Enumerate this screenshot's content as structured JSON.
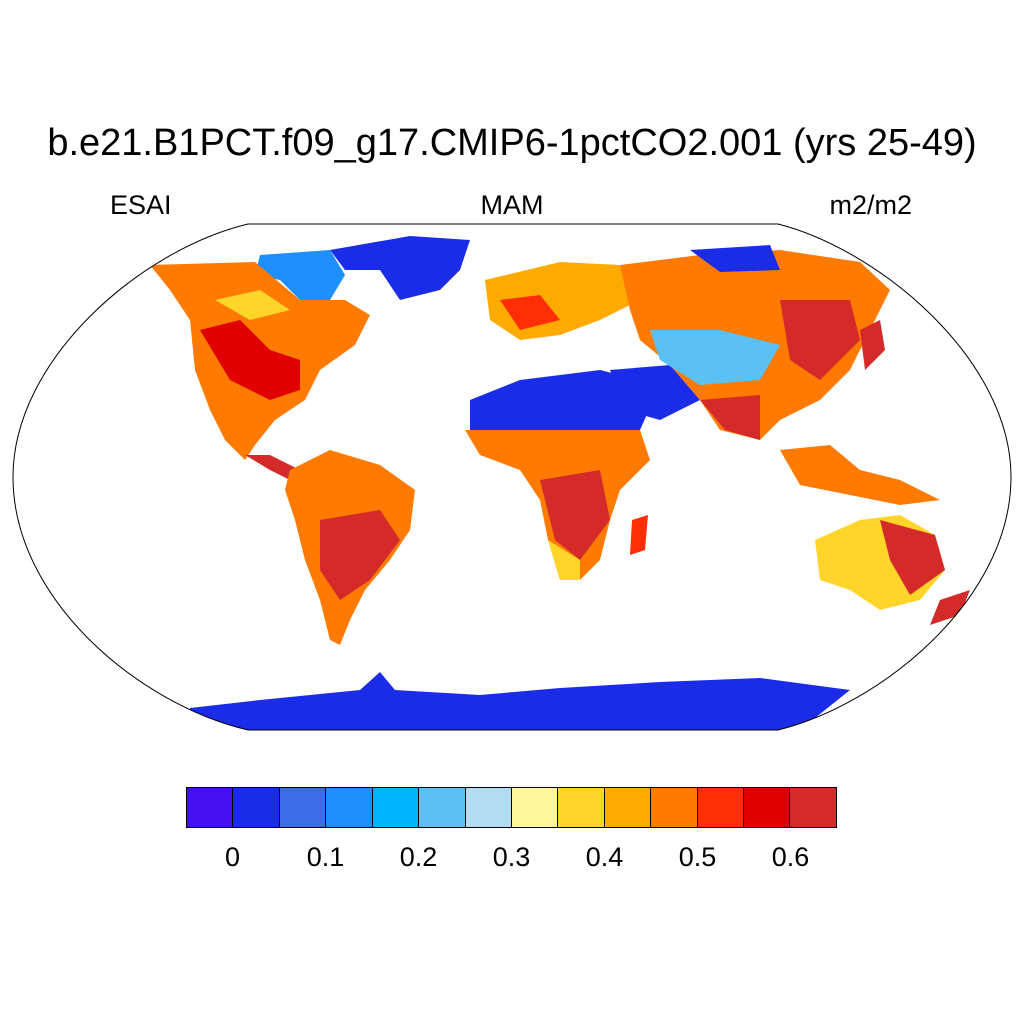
{
  "title": "b.e21.B1PCT.f09_g17.CMIP6-1pctCO2.001 (yrs 25-49)",
  "variable": "ESAI",
  "season": "MAM",
  "units": "m2/m2",
  "colorbar": {
    "colors": [
      "#4410f0",
      "#1a2ce8",
      "#3d6de6",
      "#1e8fff",
      "#00b4ff",
      "#5bc0f2",
      "#b3dcf2",
      "#fff59a",
      "#ffd52a",
      "#ffaa00",
      "#ff7a00",
      "#ff2e05",
      "#e00000",
      "#d42a2a"
    ],
    "tick_labels": [
      "0",
      "0.1",
      "0.2",
      "0.3",
      "0.4",
      "0.5",
      "0.6"
    ]
  },
  "projection": "Robinson",
  "legend_position": "bottom"
}
